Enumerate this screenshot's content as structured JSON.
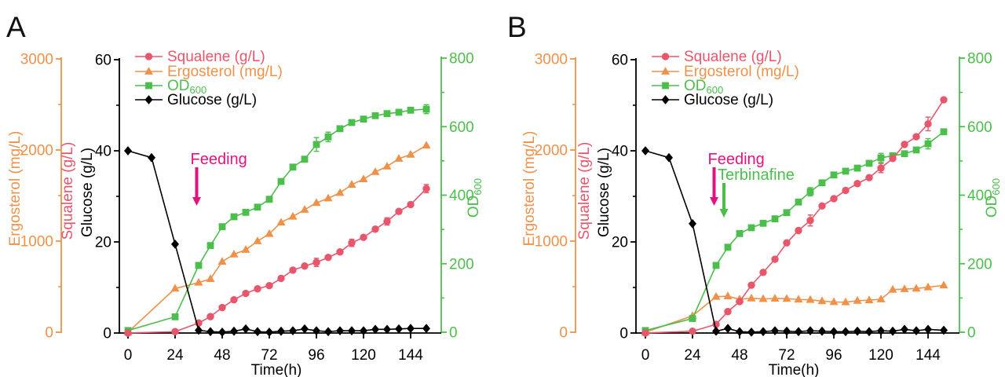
{
  "figure": {
    "background": "#ffffff"
  },
  "colors": {
    "squalene": "#E8566B",
    "ergosterol": "#F09149",
    "od600": "#4CBE4C",
    "glucose": "#000000",
    "feeding_arrow": "#E2137F",
    "terbinafine_arrow": "#4CBE4C"
  },
  "chart_data": [
    {
      "type": "line",
      "panel_label": "A",
      "xlabel": "Time(h)",
      "x_ticks": [
        0,
        24,
        48,
        72,
        96,
        120,
        144
      ],
      "xlim": [
        0,
        160
      ],
      "axes": [
        {
          "id": "ergosterol",
          "side": "left-outer",
          "label": "Ergosterol (mg/L)",
          "color": "#F09149",
          "ticks": [
            0,
            1000,
            2000,
            3000
          ],
          "minor_step": 500,
          "lim": [
            0,
            3000
          ]
        },
        {
          "id": "left-inner",
          "side": "left",
          "color": "#000000",
          "labels": [
            {
              "text": "Squalene (g/L)",
              "color": "#E8566B"
            },
            {
              "text": "Glucose (g/L)",
              "color": "#000000"
            }
          ],
          "ticks": [
            0,
            20,
            40,
            60
          ],
          "minor_step": 10,
          "lim": [
            0,
            60
          ]
        },
        {
          "id": "od",
          "side": "right",
          "label": "OD",
          "label_sub": "600",
          "color": "#4CBE4C",
          "ticks": [
            0,
            200,
            400,
            600,
            800
          ],
          "minor_step": 100,
          "lim": [
            0,
            800
          ]
        }
      ],
      "legend": [
        {
          "label": "Squalene (g/L)",
          "color": "#E8566B",
          "marker": "circle"
        },
        {
          "label": "Ergosterol (mg/L)",
          "color": "#F09149",
          "marker": "triangle"
        },
        {
          "label": "OD",
          "label_sub": "600",
          "color": "#4CBE4C",
          "marker": "square"
        },
        {
          "label": "Glucose (g/L)",
          "color": "#000000",
          "marker": "diamond"
        }
      ],
      "annotations": [
        {
          "text": "Feeding",
          "color": "#E2137F",
          "t": 35,
          "row": 0
        }
      ],
      "series": [
        {
          "name": "Ergosterol (mg/L)",
          "axis": "ergosterol",
          "color": "#F09149",
          "marker": "triangle",
          "x": [
            0,
            12,
            24,
            36,
            42,
            48,
            54,
            60,
            66,
            72,
            78,
            84,
            90,
            96,
            102,
            108,
            114,
            120,
            126,
            132,
            138,
            144,
            152
          ],
          "y": [
            0,
            null,
            480,
            545,
            585,
            775,
            855,
            905,
            1000,
            1080,
            1205,
            1270,
            1345,
            1420,
            1470,
            1530,
            1620,
            1680,
            1760,
            1820,
            1905,
            1950,
            2050
          ],
          "err": {}
        },
        {
          "name": "OD600",
          "axis": "od",
          "color": "#4CBE4C",
          "marker": "square",
          "x": [
            0,
            12,
            24,
            36,
            42,
            48,
            54,
            60,
            66,
            72,
            78,
            84,
            90,
            96,
            102,
            108,
            114,
            120,
            126,
            132,
            138,
            144,
            152
          ],
          "y": [
            5,
            null,
            45,
            195,
            253,
            308,
            337,
            350,
            365,
            388,
            440,
            482,
            505,
            548,
            570,
            594,
            612,
            622,
            632,
            638,
            642,
            648,
            651
          ],
          "err": {
            "13": 20,
            "14": 14,
            "22": 13
          }
        },
        {
          "name": "Squalene (g/L)",
          "axis": "left-inner",
          "color": "#E8566B",
          "marker": "circle",
          "x": [
            0,
            12,
            24,
            36,
            42,
            48,
            54,
            60,
            66,
            72,
            78,
            84,
            90,
            96,
            102,
            108,
            114,
            120,
            126,
            132,
            138,
            144,
            152
          ],
          "y": [
            0,
            null,
            0.3,
            2.2,
            3.6,
            5.6,
            7.3,
            8.7,
            9.7,
            10.4,
            12,
            13.8,
            14.7,
            15.5,
            16.6,
            17.8,
            19.8,
            21,
            22.8,
            24.5,
            26.7,
            28.2,
            31.7
          ],
          "err": {
            "13": 0.9,
            "16": 0.8,
            "19": 0.8,
            "22": 0.9
          }
        },
        {
          "name": "Glucose (g/L)",
          "axis": "left-inner",
          "color": "#000000",
          "marker": "diamond",
          "x": [
            0,
            12,
            24,
            36,
            42,
            48,
            54,
            60,
            66,
            72,
            78,
            84,
            90,
            96,
            102,
            108,
            114,
            120,
            126,
            132,
            138,
            144,
            152
          ],
          "y": [
            40,
            38.5,
            19.5,
            0.6,
            0.3,
            0.2,
            0.4,
            0.9,
            0.3,
            0.2,
            0.4,
            0.5,
            0.9,
            0.5,
            0.3,
            0.5,
            0.5,
            0.5,
            0.8,
            0.8,
            0.9,
            1,
            1
          ],
          "err": {}
        }
      ]
    },
    {
      "type": "line",
      "panel_label": "B",
      "xlabel": "Time(h)",
      "x_ticks": [
        0,
        24,
        48,
        72,
        96,
        120,
        144
      ],
      "xlim": [
        0,
        160
      ],
      "axes": [
        {
          "id": "ergosterol",
          "side": "left-outer",
          "label": "Ergosterol (mg/L)",
          "color": "#F09149",
          "ticks": [
            0,
            1000,
            2000,
            3000
          ],
          "minor_step": 500,
          "lim": [
            0,
            3000
          ]
        },
        {
          "id": "left-inner",
          "side": "left",
          "color": "#000000",
          "labels": [
            {
              "text": "Squalene (g/L)",
              "color": "#E8566B"
            },
            {
              "text": "Glucose (g/L)",
              "color": "#000000"
            }
          ],
          "ticks": [
            0,
            20,
            40,
            60
          ],
          "minor_step": 10,
          "lim": [
            0,
            60
          ]
        },
        {
          "id": "od",
          "side": "right",
          "label": "OD",
          "label_sub": "600",
          "color": "#4CBE4C",
          "ticks": [
            0,
            200,
            400,
            600,
            800
          ],
          "minor_step": 100,
          "lim": [
            0,
            800
          ]
        }
      ],
      "legend": [
        {
          "label": "Squalene (g/L)",
          "color": "#E8566B",
          "marker": "circle"
        },
        {
          "label": "Ergosterol (mg/L)",
          "color": "#F09149",
          "marker": "triangle"
        },
        {
          "label": "OD",
          "label_sub": "600",
          "color": "#4CBE4C",
          "marker": "square"
        },
        {
          "label": "Glucose (g/L)",
          "color": "#000000",
          "marker": "diamond"
        }
      ],
      "annotations": [
        {
          "text": "Feeding",
          "color": "#E2137F",
          "t": 35,
          "row": 0
        },
        {
          "text": "Terbinafine",
          "color": "#4CBE4C",
          "t": 40,
          "row": 1
        }
      ],
      "series": [
        {
          "name": "Ergosterol (mg/L)",
          "axis": "ergosterol",
          "color": "#F09149",
          "marker": "triangle",
          "x": [
            0,
            12,
            24,
            36,
            42,
            48,
            54,
            60,
            66,
            72,
            78,
            84,
            90,
            96,
            102,
            108,
            114,
            120,
            126,
            132,
            138,
            144,
            152
          ],
          "y": [
            0,
            null,
            180,
            390,
            396,
            362,
            372,
            366,
            370,
            368,
            360,
            356,
            342,
            332,
            330,
            346,
            352,
            362,
            468,
            474,
            480,
            494,
            515
          ],
          "err": {}
        },
        {
          "name": "OD600",
          "axis": "od",
          "color": "#4CBE4C",
          "marker": "square",
          "x": [
            0,
            12,
            24,
            36,
            42,
            48,
            54,
            60,
            66,
            72,
            78,
            84,
            90,
            96,
            102,
            108,
            114,
            120,
            126,
            132,
            138,
            144,
            152
          ],
          "y": [
            5,
            null,
            40,
            195,
            248,
            288,
            305,
            318,
            331,
            349,
            380,
            410,
            436,
            459,
            470,
            479,
            493,
            509,
            515,
            521,
            532,
            550,
            585
          ],
          "err": {
            "11": 12,
            "17": 13,
            "21": 15
          }
        },
        {
          "name": "Squalene (g/L)",
          "axis": "left-inner",
          "color": "#E8566B",
          "marker": "circle",
          "x": [
            0,
            12,
            24,
            36,
            42,
            48,
            54,
            60,
            66,
            72,
            78,
            84,
            90,
            96,
            102,
            108,
            114,
            120,
            126,
            132,
            138,
            144,
            152
          ],
          "y": [
            0,
            null,
            0.4,
            1.9,
            4.7,
            6.9,
            10.5,
            13.3,
            16.2,
            19.8,
            22.5,
            24.7,
            27.9,
            29.5,
            31.3,
            32.8,
            34.1,
            36.2,
            38.3,
            41.4,
            43.1,
            45.9,
            51.2
          ],
          "err": {
            "11": 1.2,
            "17": 1.0,
            "21": 1.5
          }
        },
        {
          "name": "Glucose (g/L)",
          "axis": "left-inner",
          "color": "#000000",
          "marker": "diamond",
          "x": [
            0,
            12,
            24,
            36,
            42,
            48,
            54,
            60,
            66,
            72,
            78,
            84,
            90,
            96,
            102,
            108,
            114,
            120,
            126,
            132,
            138,
            144,
            152
          ],
          "y": [
            40,
            38.5,
            24,
            0.4,
            1,
            0.3,
            0.2,
            0.3,
            0.5,
            0.4,
            0.3,
            0.5,
            0.4,
            0.3,
            0.3,
            0.4,
            0.3,
            0.5,
            0.4,
            0.8,
            0.5,
            0.8,
            0.6
          ],
          "err": {}
        }
      ]
    }
  ]
}
